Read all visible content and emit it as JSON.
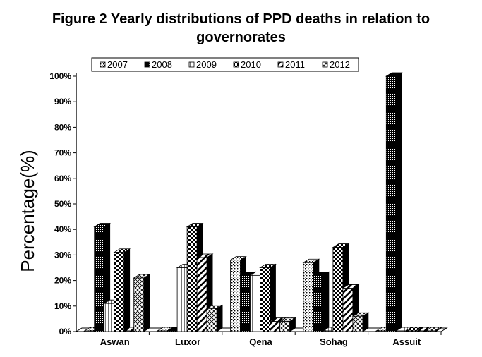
{
  "chart_data": {
    "type": "bar",
    "title_line1": "Figure 2 Yearly distributions of PPD deaths in relation to",
    "title_line2": "governorates",
    "xlabel": "",
    "ylabel": "Percentage(%)",
    "categories": [
      "Aswan",
      "Luxor",
      "Qena",
      "Sohag",
      "Assuit"
    ],
    "ylim": [
      0,
      100
    ],
    "yticks": [
      "0%",
      "10%",
      "20%",
      "30%",
      "40%",
      "50%",
      "60%",
      "70%",
      "80%",
      "90%",
      "100%"
    ],
    "legend_position": "top",
    "grid": false,
    "series": [
      {
        "name": "2007",
        "values": [
          0,
          0,
          28,
          27,
          0
        ],
        "pattern": "dots",
        "color": "#000000"
      },
      {
        "name": "2008",
        "values": [
          41,
          0,
          22,
          22,
          100
        ],
        "pattern": "dense",
        "color": "#000000"
      },
      {
        "name": "2009",
        "values": [
          11,
          25,
          22,
          0,
          0
        ],
        "pattern": "vlines",
        "color": "#000000"
      },
      {
        "name": "2010",
        "values": [
          31,
          41,
          25,
          33,
          0
        ],
        "pattern": "checker",
        "color": "#000000"
      },
      {
        "name": "2011",
        "values": [
          0,
          29,
          4,
          17,
          0
        ],
        "pattern": "diag",
        "color": "#000000"
      },
      {
        "name": "2012",
        "values": [
          21,
          9,
          4,
          6,
          0
        ],
        "pattern": "cross",
        "color": "#000000"
      }
    ]
  }
}
